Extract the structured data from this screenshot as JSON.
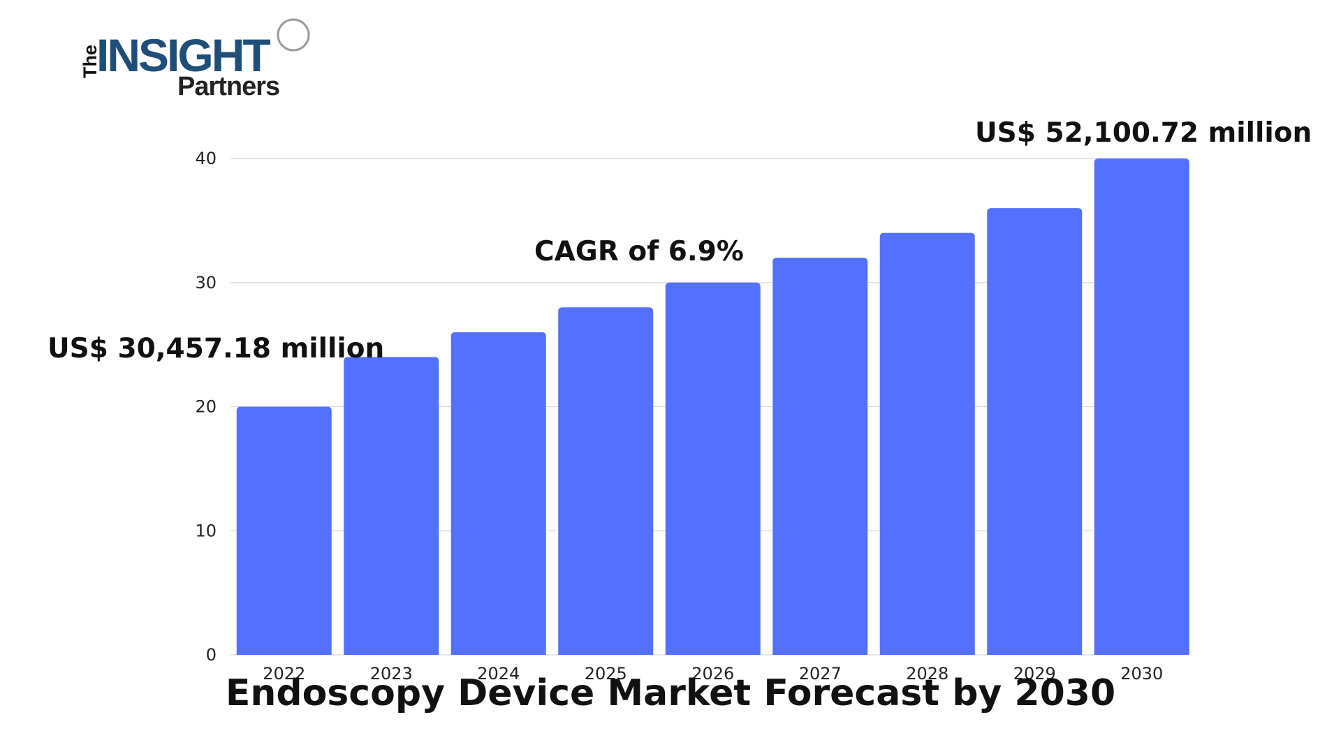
{
  "logo": {
    "the": "The",
    "insight": "INSIGHT",
    "partners": "Partners"
  },
  "colors": {
    "bar": "#5470ff",
    "grid": "#d9d9d9",
    "logo_blue": "#1f4e79"
  },
  "chart_data": {
    "type": "bar",
    "title": "Endoscopy Device Market Forecast by 2030",
    "xlabel": "",
    "ylabel": "",
    "categories": [
      "2022",
      "2023",
      "2024",
      "2025",
      "2026",
      "2027",
      "2028",
      "2029",
      "2030"
    ],
    "values": [
      20,
      24,
      26,
      28,
      30,
      32,
      34,
      36,
      40
    ],
    "ylim": [
      0,
      40
    ],
    "yticks": [
      0,
      10,
      20,
      30,
      40
    ],
    "grid": true,
    "legend": "none",
    "annotations": {
      "start_value": "US$ 30,457.18 million",
      "cagr": "CAGR of 6.9%",
      "end_value": "US$ 52,100.72 million"
    }
  }
}
